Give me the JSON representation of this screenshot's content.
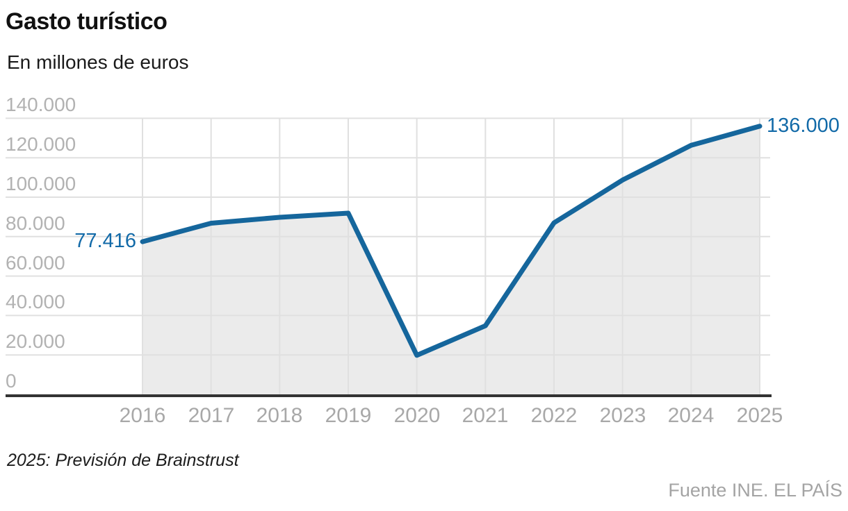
{
  "header": {
    "title": "Gasto turístico",
    "subtitle": "En millones de euros"
  },
  "chart_data": {
    "type": "area",
    "title": "Gasto turístico",
    "ylabel": "En millones de euros",
    "categories": [
      "2016",
      "2017",
      "2018",
      "2019",
      "2020",
      "2021",
      "2022",
      "2023",
      "2024",
      "2025"
    ],
    "values": [
      77416,
      86800,
      89800,
      91900,
      19800,
      34800,
      87000,
      108700,
      126300,
      136000
    ],
    "ylim": [
      0,
      140000
    ],
    "y_ticks": [
      "140.000",
      "120.000",
      "100.000",
      "80.000",
      "60.000",
      "40.000",
      "20.000",
      "0"
    ],
    "grid": "on",
    "legend": "none",
    "point_labels": {
      "first": "77.416",
      "last": "136.000"
    },
    "colors": {
      "line": "#15669c",
      "label": "#126aa8",
      "fill": "#ebebeb",
      "grid": "#e0e0e0",
      "axis": "#333333"
    }
  },
  "footer": {
    "note": "2025: Previsión de Brainstrust",
    "source": "Fuente INE. EL PAÍS"
  }
}
